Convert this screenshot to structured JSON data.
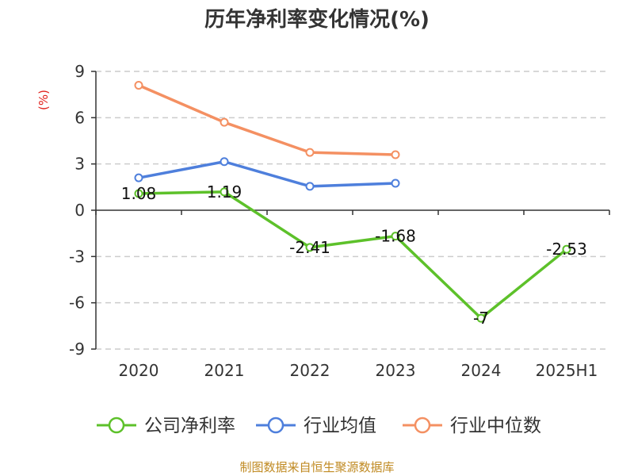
{
  "chart_data": {
    "type": "line",
    "title": "历年净利率变化情况(%)",
    "ylabel": "(%)",
    "xlabel": "",
    "categories": [
      "2020",
      "2021",
      "2022",
      "2023",
      "2024",
      "2025H1"
    ],
    "ylim": [
      -9,
      9
    ],
    "yticks": [
      9,
      6,
      3,
      0,
      -3,
      -6,
      -9
    ],
    "grid": true,
    "legend_position": "bottom",
    "series": [
      {
        "name": "公司净利率",
        "color": "#5dc12a",
        "values": [
          1.08,
          1.19,
          -2.41,
          -1.68,
          -7,
          -2.53
        ],
        "labels": [
          "1.08",
          "1.19",
          "-2.41",
          "-1.68",
          "-7",
          "-2.53"
        ]
      },
      {
        "name": "行业均值",
        "color": "#4e7fdc",
        "values": [
          2.1,
          3.15,
          1.55,
          1.75,
          null,
          null
        ]
      },
      {
        "name": "行业中位数",
        "color": "#f49062",
        "values": [
          8.1,
          5.7,
          3.75,
          3.6,
          null,
          null
        ]
      }
    ],
    "source": "制图数据来自恒生聚源数据库"
  }
}
